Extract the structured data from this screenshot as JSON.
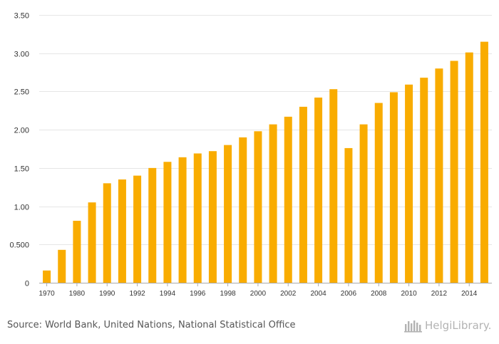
{
  "colors": {
    "bar": "#f9ac00",
    "grid": "#e6e6e6",
    "axis": "#aaaaaa",
    "text": "#333333",
    "footer_text": "#555555",
    "brand": "#b3b3b3"
  },
  "chart_data": {
    "type": "bar",
    "title": "",
    "xlabel": "",
    "ylabel": "",
    "ylim": [
      0,
      3.5
    ],
    "yticks": [
      0,
      0.5,
      1.0,
      1.5,
      2.0,
      2.5,
      3.0,
      3.5
    ],
    "ytick_labels": [
      "0",
      "0.500",
      "1.00",
      "1.50",
      "2.00",
      "2.50",
      "3.00",
      "3.50"
    ],
    "categories": [
      "1970",
      "1975",
      "1980",
      "1985",
      "1990",
      "1991",
      "1992",
      "1993",
      "1994",
      "1995",
      "1996",
      "1997",
      "1998",
      "1999",
      "2000",
      "2001",
      "2002",
      "2003",
      "2004",
      "2005",
      "2006",
      "2007",
      "2008",
      "2009",
      "2010",
      "2011",
      "2012",
      "2013",
      "2014",
      "2015"
    ],
    "xtick_labels": [
      "1970",
      "1980",
      "1990",
      "1992",
      "1994",
      "1996",
      "1998",
      "2000",
      "2002",
      "2004",
      "2006",
      "2008",
      "2010",
      "2012",
      "2014"
    ],
    "xtick_positions": [
      0,
      2,
      4,
      6,
      8,
      10,
      12,
      14,
      16,
      18,
      20,
      22,
      24,
      26,
      28
    ],
    "values": [
      0.16,
      0.43,
      0.81,
      1.05,
      1.3,
      1.35,
      1.4,
      1.5,
      1.58,
      1.64,
      1.69,
      1.72,
      1.8,
      1.9,
      1.98,
      2.07,
      2.17,
      2.3,
      2.42,
      2.53,
      1.76,
      2.07,
      2.35,
      2.49,
      2.59,
      2.68,
      2.8,
      2.9,
      3.01,
      3.15
    ],
    "grid": true,
    "legend": "none"
  },
  "footer": {
    "source": "Source: World Bank, United Nations, National Statistical Office",
    "brand": "HelgiLibrary.",
    "brand_icon": "library-logo-icon"
  }
}
